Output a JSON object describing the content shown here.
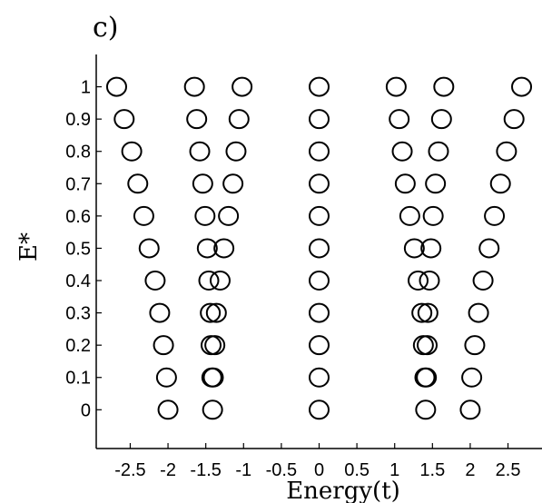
{
  "chart_data": {
    "type": "scatter",
    "panel_label": "c)",
    "title": "",
    "xlabel": "Energy(t)",
    "ylabel": "E*",
    "xlim": [
      -2.95,
      2.95
    ],
    "ylim": [
      -0.12,
      1.1
    ],
    "x_ticks": [
      {
        "value": -2.5,
        "label": "-2.5"
      },
      {
        "value": -2.0,
        "label": "-2"
      },
      {
        "value": -1.5,
        "label": "-1.5"
      },
      {
        "value": -1.0,
        "label": "-1"
      },
      {
        "value": -0.5,
        "label": "-0.5"
      },
      {
        "value": 0.0,
        "label": "0"
      },
      {
        "value": 0.5,
        "label": "0.5"
      },
      {
        "value": 1.0,
        "label": "1"
      },
      {
        "value": 1.5,
        "label": "1.5"
      },
      {
        "value": 2.0,
        "label": "2"
      },
      {
        "value": 2.5,
        "label": "2.5"
      }
    ],
    "y_ticks": [
      {
        "value": 0.0,
        "label": "0"
      },
      {
        "value": 0.1,
        "label": "0.1"
      },
      {
        "value": 0.2,
        "label": "0.2"
      },
      {
        "value": 0.3,
        "label": "0.3"
      },
      {
        "value": 0.4,
        "label": "0.4"
      },
      {
        "value": 0.5,
        "label": "0.5"
      },
      {
        "value": 0.6,
        "label": "0.6"
      },
      {
        "value": 0.7,
        "label": "0.7"
      },
      {
        "value": 0.8,
        "label": "0.8"
      },
      {
        "value": 0.9,
        "label": "0.9"
      },
      {
        "value": 1.0,
        "label": "1"
      }
    ],
    "grid": false,
    "marker": "open-circle",
    "series": [
      {
        "points": [
          {
            "y": 1.0,
            "x": [
              -2.68,
              -1.65,
              -1.02,
              0.0,
              1.02,
              1.65,
              2.68
            ]
          },
          {
            "y": 0.9,
            "x": [
              -2.58,
              -1.62,
              -1.06,
              0.0,
              1.06,
              1.62,
              2.58
            ]
          },
          {
            "y": 0.8,
            "x": [
              -2.48,
              -1.58,
              -1.1,
              0.0,
              1.1,
              1.58,
              2.48
            ]
          },
          {
            "y": 0.7,
            "x": [
              -2.4,
              -1.54,
              -1.14,
              0.0,
              1.14,
              1.54,
              2.4
            ]
          },
          {
            "y": 0.6,
            "x": [
              -2.32,
              -1.51,
              -1.2,
              0.0,
              1.2,
              1.51,
              2.32
            ]
          },
          {
            "y": 0.5,
            "x": [
              -2.25,
              -1.48,
              -1.26,
              0.0,
              1.26,
              1.48,
              2.25
            ]
          },
          {
            "y": 0.4,
            "x": [
              -2.17,
              -1.46,
              -1.31,
              0.0,
              1.31,
              1.46,
              2.17
            ]
          },
          {
            "y": 0.3,
            "x": [
              -2.11,
              -1.44,
              -1.36,
              0.0,
              1.36,
              1.44,
              2.11
            ]
          },
          {
            "y": 0.2,
            "x": [
              -2.06,
              -1.43,
              -1.38,
              0.0,
              1.38,
              1.43,
              2.06
            ]
          },
          {
            "y": 0.1,
            "x": [
              -2.02,
              -1.42,
              -1.4,
              0.0,
              1.4,
              1.42,
              2.02
            ]
          },
          {
            "y": 0.0,
            "x": [
              -2.0,
              -1.41,
              0.0,
              1.41,
              2.0
            ]
          }
        ]
      }
    ]
  }
}
